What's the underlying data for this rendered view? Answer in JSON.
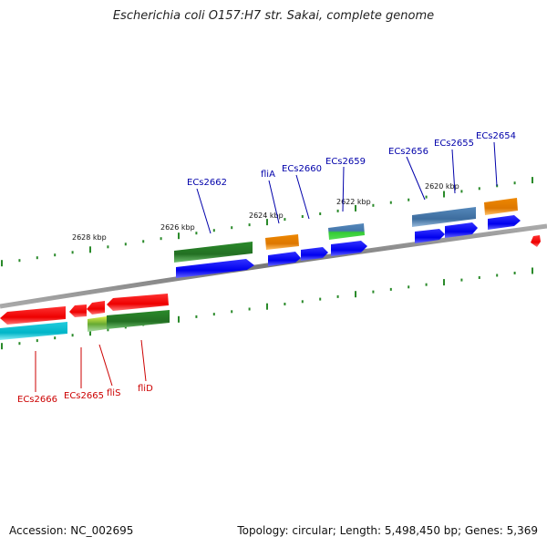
{
  "title": "Escherichia coli O157:H7 str. Sakai, complete genome",
  "ticks": [
    {
      "label": "2628 kbp"
    },
    {
      "label": "2626 kbp"
    },
    {
      "label": "2624 kbp"
    },
    {
      "label": "2622 kbp"
    },
    {
      "label": "2620 kbp"
    }
  ],
  "genes_top": [
    {
      "label": "ECs2662",
      "color": "#0000aa"
    },
    {
      "label": "fliA",
      "color": "#0000aa"
    },
    {
      "label": "ECs2660",
      "color": "#0000aa"
    },
    {
      "label": "ECs2659",
      "color": "#0000aa"
    },
    {
      "label": "ECs2656",
      "color": "#0000aa"
    },
    {
      "label": "ECs2655",
      "color": "#0000aa"
    },
    {
      "label": "ECs2654",
      "color": "#0000aa"
    }
  ],
  "genes_bottom": [
    {
      "label": "ECs2666",
      "color": "#cc0000"
    },
    {
      "label": "ECs2665",
      "color": "#cc0000"
    },
    {
      "label": "fliS",
      "color": "#cc0000"
    },
    {
      "label": "fliD",
      "color": "#cc0000"
    }
  ],
  "colors": {
    "forward_cds": "#0000ee",
    "reverse_cds": "#ee0000",
    "gene_green": "#2e8b2e",
    "gene_orange": "#ee8800",
    "gene_steelblue": "#4a7fb5",
    "gene_cyan": "#00bcd4",
    "backbone": "#888888",
    "tick_green": "#2a8a2a"
  },
  "footer": {
    "accession": "Accession: NC_002695",
    "summary": "Topology: circular; Length: 5,498,450 bp; Genes: 5,369"
  }
}
